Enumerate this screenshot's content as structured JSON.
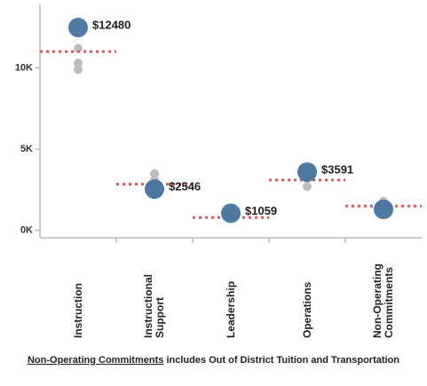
{
  "chart_data": {
    "type": "dot",
    "categories": [
      "Instruction",
      "Instructional Support",
      "Leadership",
      "Operations",
      "Non-Operating Commitments"
    ],
    "values": [
      12480,
      2546,
      1059,
      3591,
      1300
    ],
    "value_labels": [
      "$12480",
      "$2546",
      "$1059",
      "$3591",
      null
    ],
    "color": "#44739e",
    "other_values": [
      [
        11200,
        10300,
        9900
      ],
      [
        3500,
        3100,
        2700,
        2200
      ],
      [
        900
      ],
      [
        2700,
        3200
      ],
      [
        1800,
        1500
      ]
    ],
    "other_color": "#bdbdbd",
    "reference_values": [
      11000,
      2850,
      800,
      3100,
      1500
    ],
    "reference_color": "#e15759",
    "ylim": [
      -450,
      13900
    ],
    "yticks": [
      {
        "value": 0,
        "label": "0K"
      },
      {
        "value": 5000,
        "label": "5K"
      },
      {
        "value": 10000,
        "label": "10K"
      }
    ],
    "footnote_link": "Non-Operating Commitments",
    "footnote_text": "includes Out of District Tuition and Transportation"
  }
}
